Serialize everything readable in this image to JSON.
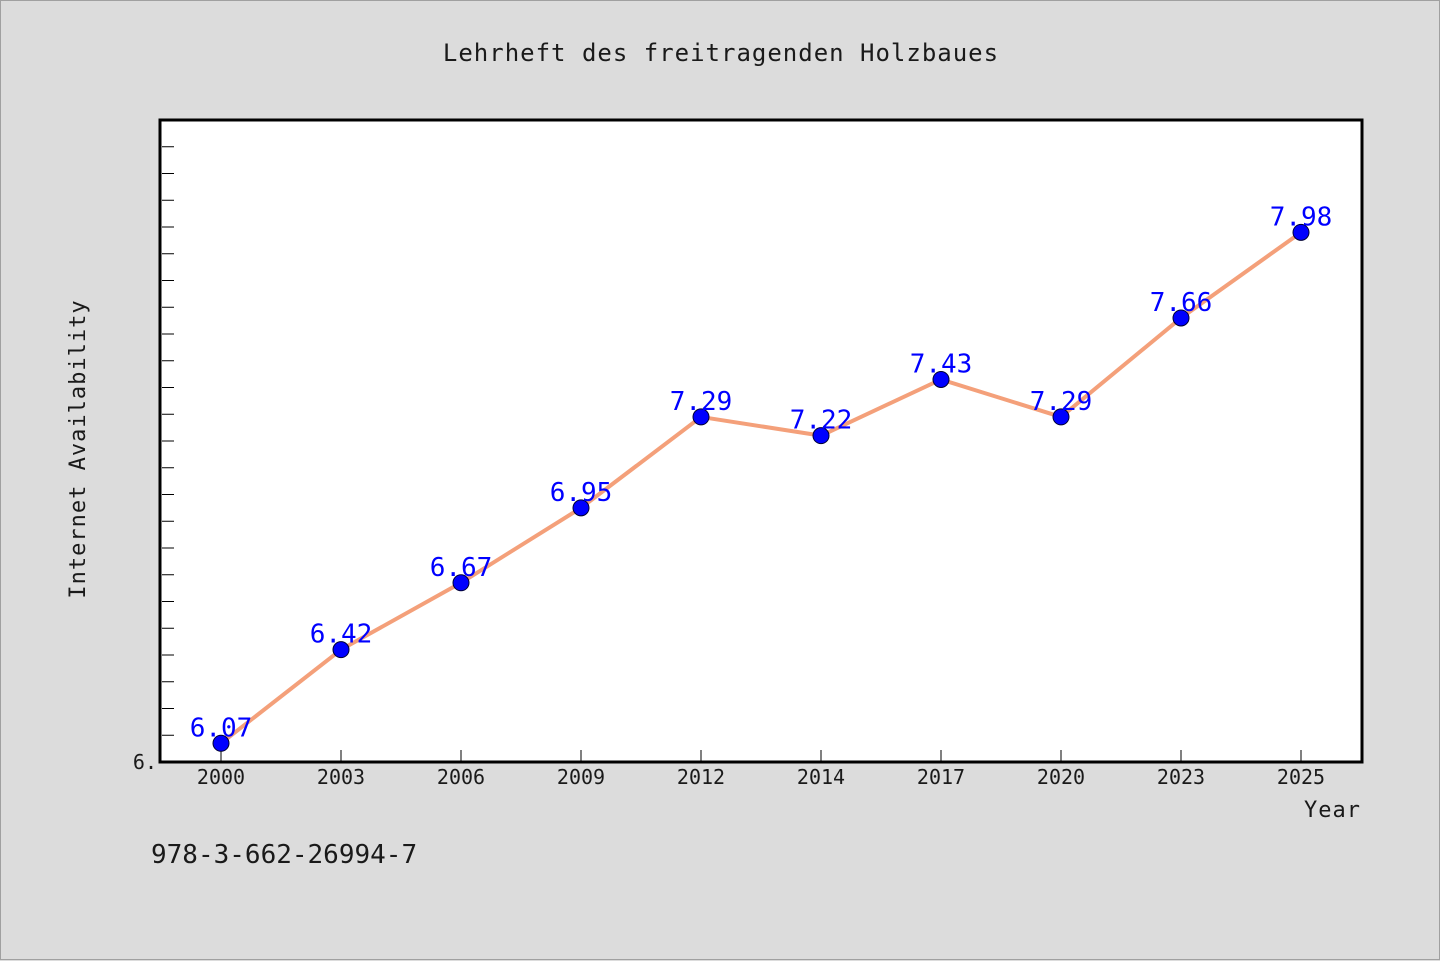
{
  "chart_data": {
    "type": "line",
    "title": "Lehrheft des freitragenden Holzbaues",
    "xlabel": "Year",
    "ylabel": "Internet Availability",
    "categories": [
      "2000",
      "2003",
      "2006",
      "2009",
      "2012",
      "2014",
      "2017",
      "2020",
      "2023",
      "2025"
    ],
    "series": [
      {
        "values": [
          6.07,
          6.42,
          6.67,
          6.95,
          7.29,
          7.22,
          7.43,
          7.29,
          7.66,
          7.98
        ]
      }
    ],
    "data_labels": [
      "6.07",
      "6.42",
      "6.67",
      "6.95",
      "7.29",
      "7.22",
      "7.43",
      "7.29",
      "7.66",
      "7.98"
    ],
    "ylim": [
      6.0,
      8.4
    ],
    "y_tick_label": "6.",
    "y_minor_tick_step": 0.1,
    "grid": false,
    "colors": {
      "line": "#f4a07a",
      "marker": "#0000ff",
      "data_label": "#0000ff",
      "background": "#dcdcdc",
      "plot_background": "#ffffff"
    }
  },
  "footer": {
    "isbn": "978-3-662-26994-7"
  }
}
